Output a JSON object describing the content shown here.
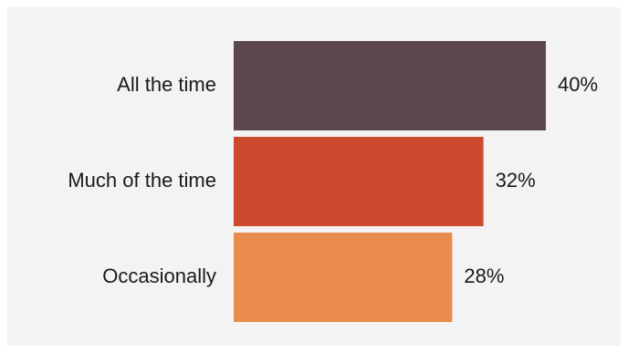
{
  "chart_data": {
    "type": "bar",
    "orientation": "horizontal",
    "categories": [
      "All the time",
      "Much of the time",
      "Occasionally"
    ],
    "values": [
      40,
      32,
      28
    ],
    "value_labels": [
      "40%",
      "32%",
      "28%"
    ],
    "unit": "%",
    "colors": [
      "#5c464f",
      "#cc4a2d",
      "#e88b4c"
    ],
    "xlim": [
      0,
      40
    ],
    "title": "",
    "xlabel": "",
    "ylabel": "",
    "grid": false,
    "legend": "none"
  }
}
